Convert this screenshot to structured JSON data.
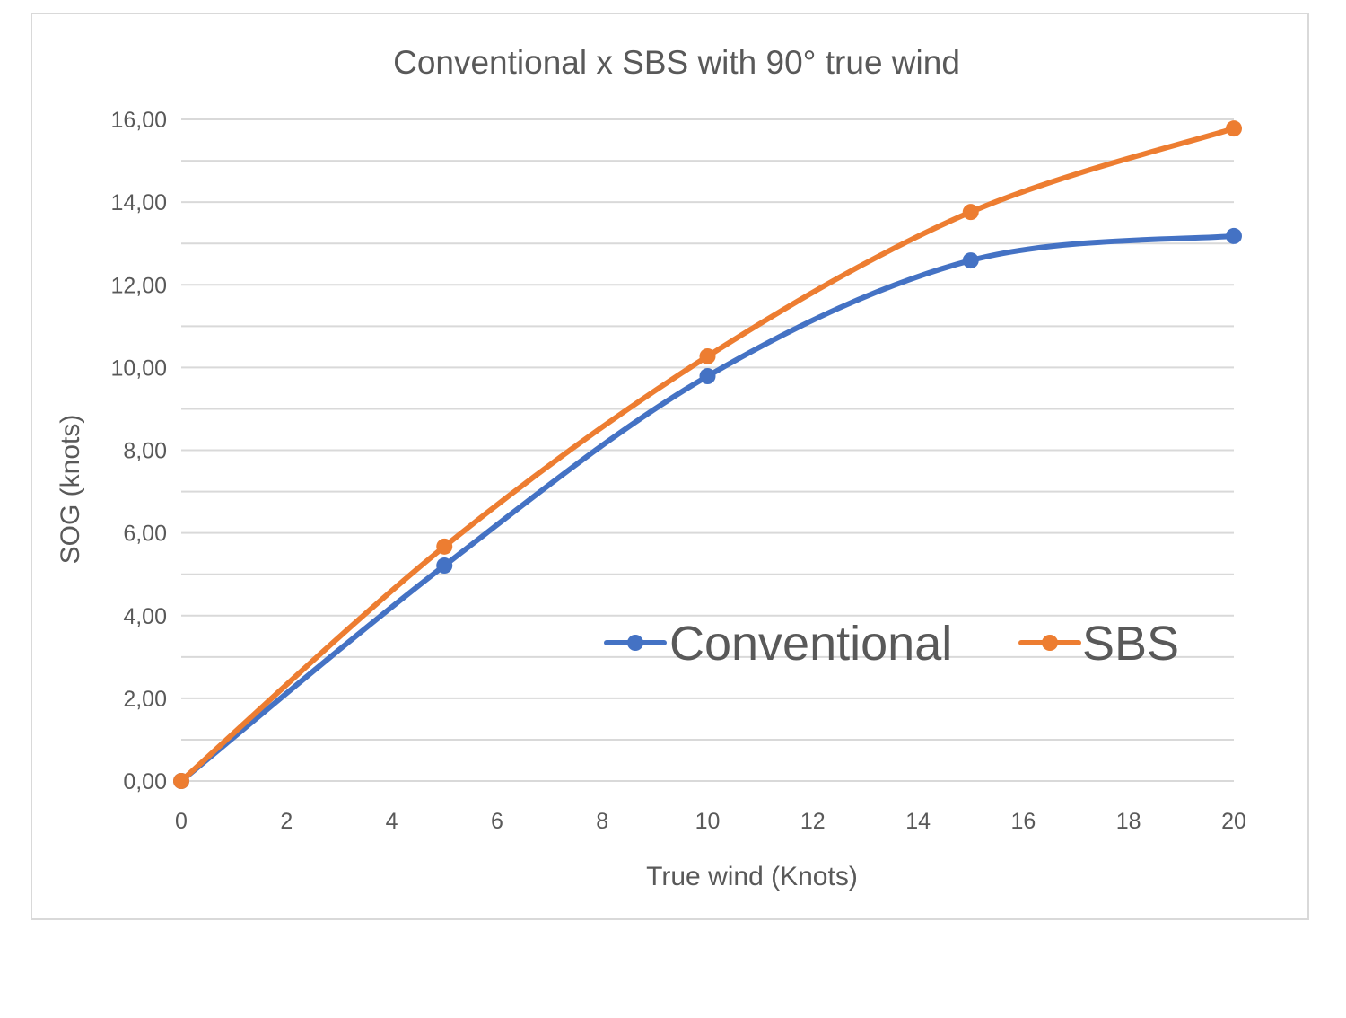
{
  "chart_data": {
    "type": "line",
    "title": "Conventional x SBS with 90° true wind",
    "xlabel": "True wind (Knots)",
    "ylabel": "SOG (knots)",
    "xlim": [
      0,
      20
    ],
    "ylim": [
      0,
      16
    ],
    "x_ticks": [
      "0",
      "2",
      "4",
      "6",
      "8",
      "10",
      "12",
      "14",
      "16",
      "18",
      "20"
    ],
    "x_tick_values": [
      0,
      2,
      4,
      6,
      8,
      10,
      12,
      14,
      16,
      18,
      20
    ],
    "y_ticks": [
      "0,00",
      "2,00",
      "4,00",
      "6,00",
      "8,00",
      "10,00",
      "12,00",
      "14,00",
      "16,00"
    ],
    "y_tick_values": [
      0,
      2,
      4,
      6,
      8,
      10,
      12,
      14,
      16
    ],
    "grid": true,
    "minor_grid_step": 1,
    "smooth": true,
    "legend_position": "inside-lower-right",
    "x": [
      0,
      5,
      10,
      15,
      20
    ],
    "series": [
      {
        "name": "Conventional",
        "color": "#4472c4",
        "values": [
          0,
          5.21,
          9.79,
          12.59,
          13.18
        ]
      },
      {
        "name": "SBS",
        "color": "#ed7d31",
        "values": [
          0,
          5.67,
          10.27,
          13.76,
          15.78
        ]
      }
    ]
  }
}
